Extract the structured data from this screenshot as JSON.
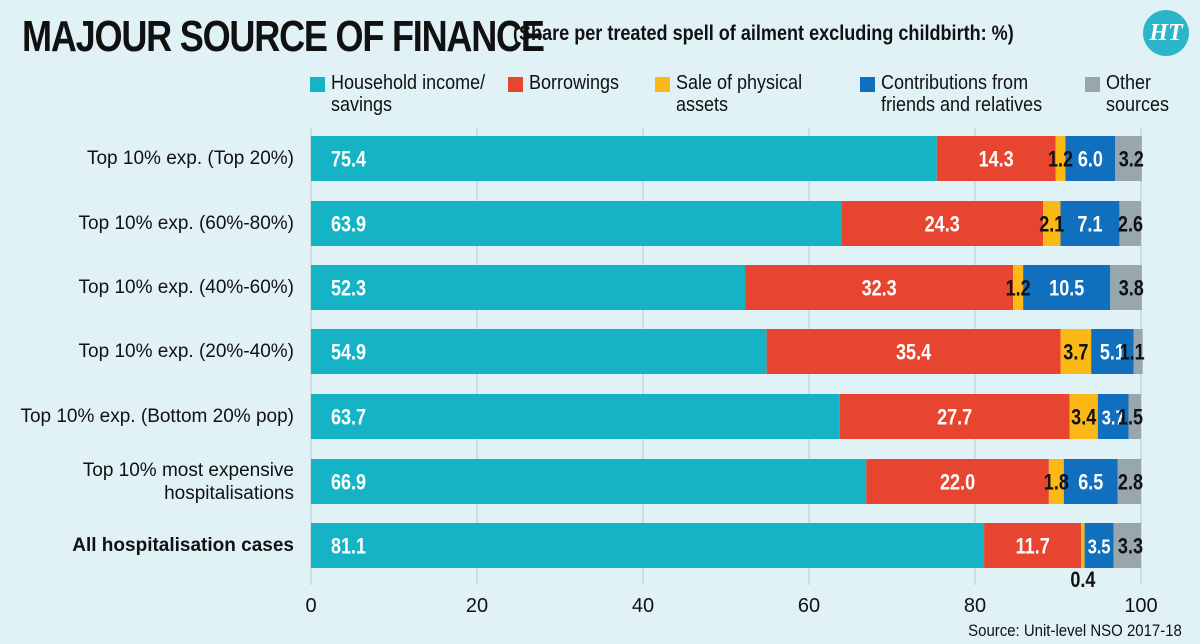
{
  "title": "MAJOUR SOURCE OF FINANCE",
  "subtitle": "(Share per treated spell of ailment excluding childbirth: %)",
  "logo_text": "HT",
  "source": "Source: Unit-level NSO 2017-18",
  "chart_data": {
    "type": "bar",
    "orientation": "horizontal",
    "stacked": true,
    "categories": [
      "Top 10% exp. (Top 20%)",
      "Top 10% exp. (60%-80%)",
      "Top 10% exp. (40%-60%)",
      "Top 10% exp. (20%-40%)",
      "Top 10% exp. (Bottom 20% pop)",
      "Top 10% most expensive\nhospitalisations",
      "All hospitalisation cases"
    ],
    "series": [
      {
        "name": "Household income/\nsavings",
        "color": "#14b4c6",
        "values": [
          75.4,
          63.9,
          52.3,
          54.9,
          63.7,
          66.9,
          81.1
        ]
      },
      {
        "name": "Borrowings",
        "color": "#e84530",
        "values": [
          14.3,
          24.3,
          32.3,
          35.4,
          27.7,
          22.0,
          11.7
        ]
      },
      {
        "name": "Sale of physical\nassets",
        "color": "#fbb817",
        "values": [
          1.2,
          2.1,
          1.2,
          3.7,
          3.4,
          1.8,
          0.4
        ]
      },
      {
        "name": "Contributions from\nfriends and relatives",
        "color": "#1170bd",
        "values": [
          6.0,
          7.1,
          10.5,
          5.1,
          3.7,
          6.5,
          3.5
        ]
      },
      {
        "name": "Other\nsources",
        "color": "#98a6ae",
        "values": [
          3.2,
          2.6,
          3.8,
          1.1,
          1.5,
          2.8,
          3.3
        ]
      }
    ],
    "data_labels": [
      [
        "75.4",
        "14.3",
        "1.2",
        "6.0",
        "3.2"
      ],
      [
        "63.9",
        "24.3",
        "2.1",
        "7.1",
        "2.6"
      ],
      [
        "52.3",
        "32.3",
        "1.2",
        "10.5",
        "3.8"
      ],
      [
        "54.9",
        "35.4",
        "3.7",
        "5.1",
        "1.1"
      ],
      [
        "63.7",
        "27.7",
        "3.4",
        "3.7",
        "1.5"
      ],
      [
        "66.9",
        "22.0",
        "1.8",
        "6.5",
        "2.8"
      ],
      [
        "81.1",
        "11.7",
        "0.4",
        "3.5",
        "3.3"
      ]
    ],
    "xlim": [
      0,
      100
    ],
    "xticks": [
      "0",
      "20",
      "40",
      "60",
      "80",
      "100"
    ],
    "grid": true,
    "legend_position": "top"
  }
}
